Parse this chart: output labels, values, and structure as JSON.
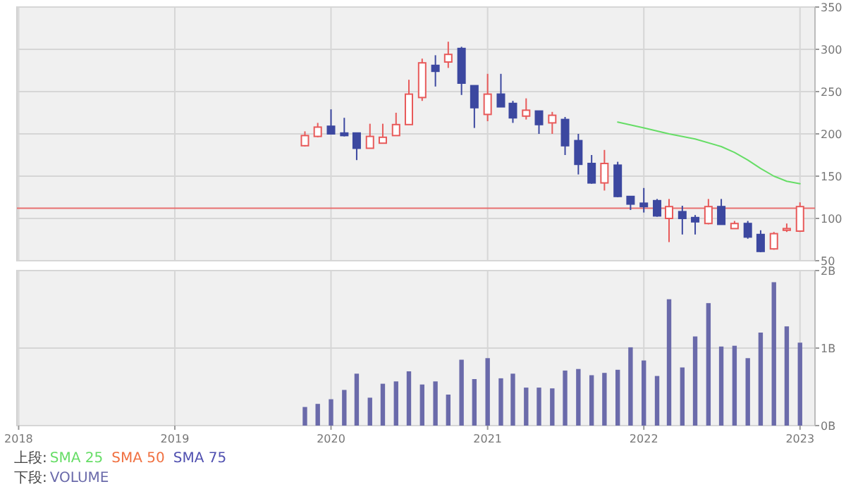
{
  "chart_data": [
    {
      "type": "candlestick",
      "legend_title": "上段:",
      "legend": "bottom",
      "grid": true,
      "tick_labels": "y",
      "xlim": [
        "2017-12-28",
        "2023-02-05"
      ],
      "xticks": [
        "2018",
        "2019",
        "2020",
        "2021",
        "2022",
        "2023"
      ],
      "ylim": [
        50,
        350
      ],
      "yticks": [
        50,
        100,
        150,
        200,
        250,
        300,
        350
      ],
      "x": [
        "2019-11",
        "2019-12",
        "2020-01",
        "2020-02",
        "2020-03",
        "2020-04",
        "2020-05",
        "2020-06",
        "2020-07",
        "2020-08",
        "2020-09",
        "2020-10",
        "2020-11",
        "2020-12",
        "2021-01",
        "2021-02",
        "2021-03",
        "2021-04",
        "2021-05",
        "2021-06",
        "2021-07",
        "2021-08",
        "2021-09",
        "2021-10",
        "2021-11",
        "2021-12",
        "2022-01",
        "2022-02",
        "2022-03",
        "2022-04",
        "2022-05",
        "2022-06",
        "2022-07",
        "2022-08",
        "2022-09",
        "2022-10",
        "2022-11",
        "2022-12",
        "2023-01"
      ],
      "ohlc": [
        [
          186,
          203,
          185,
          198
        ],
        [
          197,
          213,
          196,
          208
        ],
        [
          209,
          229,
          200,
          200
        ],
        [
          201,
          219,
          197,
          198
        ],
        [
          201,
          201,
          169,
          183
        ],
        [
          183,
          212,
          183,
          197
        ],
        [
          189,
          212,
          189,
          196
        ],
        [
          198,
          225,
          198,
          211
        ],
        [
          211,
          264,
          211,
          247
        ],
        [
          243,
          289,
          239,
          284
        ],
        [
          281,
          293,
          256,
          274
        ],
        [
          285,
          309,
          278,
          294
        ],
        [
          301,
          303,
          246,
          260
        ],
        [
          257,
          257,
          207,
          231
        ],
        [
          223,
          271,
          215,
          247
        ],
        [
          247,
          271,
          232,
          232
        ],
        [
          236,
          239,
          213,
          219
        ],
        [
          221,
          242,
          217,
          228
        ],
        [
          227,
          227,
          200,
          211
        ],
        [
          213,
          226,
          200,
          222
        ],
        [
          217,
          220,
          175,
          186
        ],
        [
          192,
          200,
          152,
          164
        ],
        [
          165,
          175,
          141,
          142
        ],
        [
          142,
          181,
          133,
          165
        ],
        [
          163,
          167,
          125,
          126
        ],
        [
          126,
          126,
          110,
          117
        ],
        [
          118,
          136,
          107,
          114
        ],
        [
          121,
          123,
          102,
          103
        ],
        [
          100,
          123,
          72,
          114
        ],
        [
          108,
          115,
          81,
          100
        ],
        [
          101,
          104,
          81,
          96
        ],
        [
          94,
          123,
          93,
          114
        ],
        [
          114,
          123,
          93,
          93
        ],
        [
          88,
          97,
          88,
          94
        ],
        [
          94,
          97,
          76,
          78
        ],
        [
          81,
          86,
          60,
          61
        ],
        [
          64,
          84,
          63,
          82
        ],
        [
          86,
          94,
          84,
          88
        ],
        [
          85,
          119,
          84,
          114
        ]
      ],
      "colors": [
        "#e85a5a",
        "#e85a5a",
        "#3c48a0",
        "#3c48a0",
        "#3c48a0",
        "#e85a5a",
        "#e85a5a",
        "#e85a5a",
        "#e85a5a",
        "#e85a5a",
        "#3c48a0",
        "#e85a5a",
        "#3c48a0",
        "#3c48a0",
        "#e85a5a",
        "#3c48a0",
        "#3c48a0",
        "#e85a5a",
        "#3c48a0",
        "#e85a5a",
        "#3c48a0",
        "#3c48a0",
        "#3c48a0",
        "#e85a5a",
        "#3c48a0",
        "#3c48a0",
        "#3c48a0",
        "#3c48a0",
        "#e85a5a",
        "#3c48a0",
        "#3c48a0",
        "#e85a5a",
        "#3c48a0",
        "#e85a5a",
        "#3c48a0",
        "#3c48a0",
        "#e85a5a",
        "#e85a5a",
        "#e85a5a"
      ],
      "ref_lines": [
        {
          "axis": "y",
          "value": 112,
          "color": "#e87070"
        }
      ],
      "series": [
        {
          "name": "SMA 25",
          "type": "line",
          "color": "#66dd66",
          "x": [
            "2021-11",
            "2022-01",
            "2022-03",
            "2022-05",
            "2022-07",
            "2022-08",
            "2022-09",
            "2022-10",
            "2022-11",
            "2022-12",
            "2023-01"
          ],
          "values": [
            214,
            207,
            200,
            194,
            185,
            178,
            169,
            159,
            150,
            144,
            141
          ]
        },
        {
          "name": "SMA 50",
          "type": "line",
          "color": "#f07040",
          "values": [
            null,
            null,
            null,
            null,
            null,
            null,
            null,
            null,
            null,
            null,
            null,
            null,
            null,
            null,
            null,
            null,
            null,
            null,
            null,
            null,
            null,
            null,
            null,
            null,
            null,
            null,
            null,
            null,
            null,
            null,
            null,
            null,
            null,
            null,
            null,
            null,
            null,
            null,
            null
          ]
        },
        {
          "name": "SMA 75",
          "type": "line",
          "color": "#5050b0",
          "values": [
            null,
            null,
            null,
            null,
            null,
            null,
            null,
            null,
            null,
            null,
            null,
            null,
            null,
            null,
            null,
            null,
            null,
            null,
            null,
            null,
            null,
            null,
            null,
            null,
            null,
            null,
            null,
            null,
            null,
            null,
            null,
            null,
            null,
            null,
            null,
            null,
            null,
            null,
            null
          ]
        }
      ]
    },
    {
      "type": "bar",
      "legend_title": "下段:",
      "legend": "bottom",
      "grid": true,
      "xlim": [
        "2017-12-28",
        "2023-02-05"
      ],
      "xticks": [
        "2018",
        "2019",
        "2020",
        "2021",
        "2022",
        "2023"
      ],
      "ylim": [
        0,
        2
      ],
      "yticks": [
        {
          "value": 0,
          "label": "0B"
        },
        {
          "value": 1,
          "label": "1B"
        },
        {
          "value": 2,
          "label": "2B"
        }
      ],
      "x": [
        "2019-11",
        "2019-12",
        "2020-01",
        "2020-02",
        "2020-03",
        "2020-04",
        "2020-05",
        "2020-06",
        "2020-07",
        "2020-08",
        "2020-09",
        "2020-10",
        "2020-11",
        "2020-12",
        "2021-01",
        "2021-02",
        "2021-03",
        "2021-04",
        "2021-05",
        "2021-06",
        "2021-07",
        "2021-08",
        "2021-09",
        "2021-10",
        "2021-11",
        "2021-12",
        "2022-01",
        "2022-02",
        "2022-03",
        "2022-04",
        "2022-05",
        "2022-06",
        "2022-07",
        "2022-08",
        "2022-09",
        "2022-10",
        "2022-11",
        "2022-12",
        "2023-01"
      ],
      "series": [
        {
          "name": "VOLUME",
          "color": "#6a6aaa",
          "values": [
            0.24,
            0.28,
            0.34,
            0.46,
            0.67,
            0.36,
            0.54,
            0.57,
            0.7,
            0.53,
            0.57,
            0.4,
            0.85,
            0.6,
            0.87,
            0.61,
            0.67,
            0.49,
            0.49,
            0.48,
            0.71,
            0.73,
            0.65,
            0.68,
            0.72,
            1.01,
            0.84,
            0.64,
            1.63,
            0.75,
            1.15,
            1.58,
            1.02,
            1.03,
            0.87,
            1.2,
            1.85,
            1.28,
            1.07
          ]
        }
      ]
    }
  ]
}
